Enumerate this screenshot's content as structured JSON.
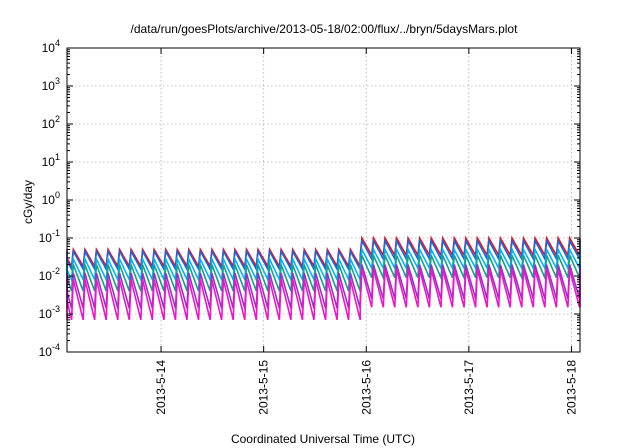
{
  "chart_data": {
    "type": "line",
    "title": "/data/run/goesPlots/archive/2013-05-18/02:00/flux/../bryn/5daysMars.plot",
    "xlabel": "Coordinated Universal Time (UTC)",
    "ylabel": "cGy/day",
    "yscale": "log",
    "ylim": [
      0.0001,
      10000
    ],
    "y_ticks": [
      {
        "base": "10",
        "exp": "-4",
        "value": 0.0001
      },
      {
        "base": "10",
        "exp": "-3",
        "value": 0.001
      },
      {
        "base": "10",
        "exp": "-2",
        "value": 0.01
      },
      {
        "base": "10",
        "exp": "-1",
        "value": 0.1
      },
      {
        "base": "10",
        "exp": "0",
        "value": 1
      },
      {
        "base": "10",
        "exp": "1",
        "value": 10
      },
      {
        "base": "10",
        "exp": "2",
        "value": 100
      },
      {
        "base": "10",
        "exp": "3",
        "value": 1000
      },
      {
        "base": "10",
        "exp": "4",
        "value": 10000
      }
    ],
    "xlim": [
      "2013-05-13 02:00",
      "2013-05-18 02:00"
    ],
    "x_ticks": [
      {
        "label": "2013-5-14",
        "value": "2013-05-14 00:00"
      },
      {
        "label": "2013-5-15",
        "value": "2013-05-15 00:00"
      },
      {
        "label": "2013-5-16",
        "value": "2013-05-16 00:00"
      },
      {
        "label": "2013-5-17",
        "value": "2013-05-17 00:00"
      },
      {
        "label": "2013-5-18",
        "value": "2013-05-18 00:00"
      }
    ],
    "grid": true,
    "sawtooth_period_hours": 2.7,
    "series": [
      {
        "color": "#e8141c",
        "peak_before": 0.05,
        "trough_before": 0.018,
        "peak_after": 0.1,
        "trough_after": 0.035
      },
      {
        "color": "#1e64dc",
        "peak_before": 0.045,
        "trough_before": 0.015,
        "peak_after": 0.085,
        "trough_after": 0.028
      },
      {
        "color": "#00b4f0",
        "peak_before": 0.028,
        "trough_before": 0.008,
        "peak_after": 0.05,
        "trough_after": 0.016
      },
      {
        "color": "#14a08c",
        "peak_before": 0.02,
        "trough_before": 0.004,
        "peak_after": 0.035,
        "trough_after": 0.009
      },
      {
        "color": "#9632c8",
        "peak_before": 0.012,
        "trough_before": 0.0014,
        "peak_after": 0.02,
        "trough_after": 0.0025
      },
      {
        "color": "#f014c8",
        "peak_before": 0.008,
        "trough_before": 0.0007,
        "peak_after": 0.015,
        "trough_after": 0.0015
      }
    ],
    "step_change_at": "2013-05-15 22:00"
  }
}
